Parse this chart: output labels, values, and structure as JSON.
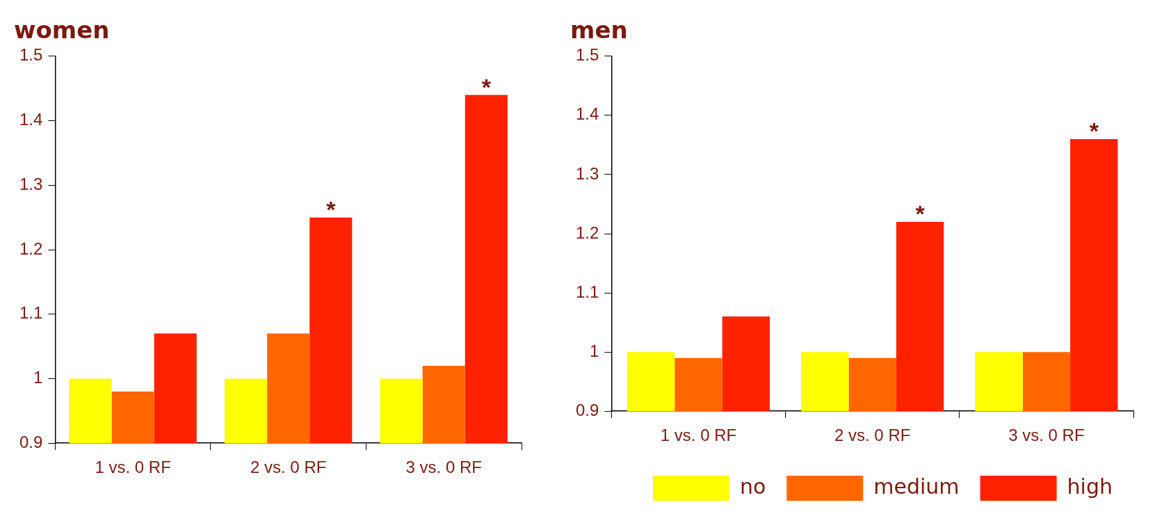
{
  "chart_data": [
    {
      "type": "bar",
      "title": "women",
      "categories": [
        "1 vs. 0 RF",
        "2 vs. 0 RF",
        "3 vs. 0 RF"
      ],
      "series": [
        {
          "color": "#ffff00",
          "values": [
            1,
            1,
            1
          ]
        },
        {
          "color": "#ff6600",
          "values": [
            0.98,
            1.07,
            1.02
          ]
        },
        {
          "color": "#ff2200",
          "values": [
            1.07,
            1.25,
            1.44
          ]
        }
      ],
      "ylim": [
        0.9,
        1.5
      ],
      "yticks": [
        0.9,
        1,
        1.1,
        1.2,
        1.3,
        1.4,
        1.5
      ],
      "annotations": [
        "*",
        "*"
      ]
    },
    {
      "type": "bar",
      "title": "men",
      "categories": [
        "1 vs. 0 RF",
        "2 vs. 0 RF",
        "3 vs. 0 RF"
      ],
      "series": [
        {
          "name": "no",
          "color": "#ffff00",
          "values": [
            1,
            1,
            1
          ]
        },
        {
          "name": "medium",
          "color": "#ff6600",
          "values": [
            0.99,
            0.99,
            1.0
          ]
        },
        {
          "name": "high",
          "color": "#ff2200",
          "values": [
            1.06,
            1.22,
            1.36
          ]
        }
      ],
      "ylim": [
        0.9,
        1.5
      ],
      "yticks": [
        0.9,
        1,
        1.1,
        1.2,
        1.3,
        1.4,
        1.5
      ],
      "legend": "bottom",
      "annotations": [
        "*",
        "*"
      ]
    }
  ]
}
